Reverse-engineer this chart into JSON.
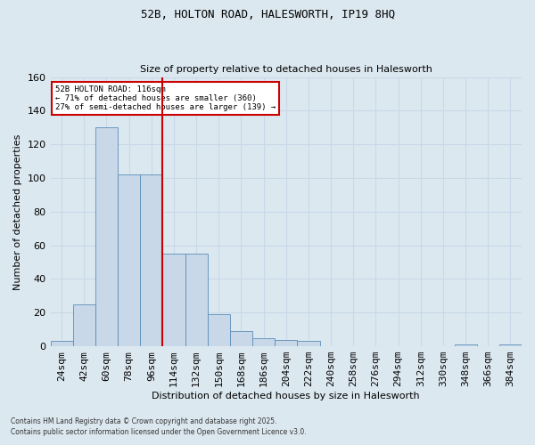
{
  "title1": "52B, HOLTON ROAD, HALESWORTH, IP19 8HQ",
  "title2": "Size of property relative to detached houses in Halesworth",
  "xlabel": "Distribution of detached houses by size in Halesworth",
  "ylabel": "Number of detached properties",
  "categories": [
    "24sqm",
    "42sqm",
    "60sqm",
    "78sqm",
    "96sqm",
    "114sqm",
    "132sqm",
    "150sqm",
    "168sqm",
    "186sqm",
    "204sqm",
    "222sqm",
    "240sqm",
    "258sqm",
    "276sqm",
    "294sqm",
    "312sqm",
    "330sqm",
    "348sqm",
    "366sqm",
    "384sqm"
  ],
  "values": [
    3,
    25,
    130,
    102,
    102,
    55,
    55,
    19,
    9,
    5,
    4,
    3,
    0,
    0,
    0,
    0,
    0,
    0,
    1,
    0,
    1
  ],
  "bar_color": "#c8d8e8",
  "bar_edge_color": "#5b8db8",
  "grid_color": "#c8d8e8",
  "bg_color": "#dce8f0",
  "annotation_line1": "52B HOLTON ROAD: 116sqm",
  "annotation_line2": "← 71% of detached houses are smaller (360)",
  "annotation_line3": "27% of semi-detached houses are larger (139) →",
  "annotation_box_color": "#ffffff",
  "annotation_box_edge_color": "#cc0000",
  "vline_pos": 4.5,
  "footnote1": "Contains HM Land Registry data © Crown copyright and database right 2025.",
  "footnote2": "Contains public sector information licensed under the Open Government Licence v3.0.",
  "ylim": [
    0,
    160
  ],
  "yticks": [
    0,
    20,
    40,
    60,
    80,
    100,
    120,
    140,
    160
  ]
}
